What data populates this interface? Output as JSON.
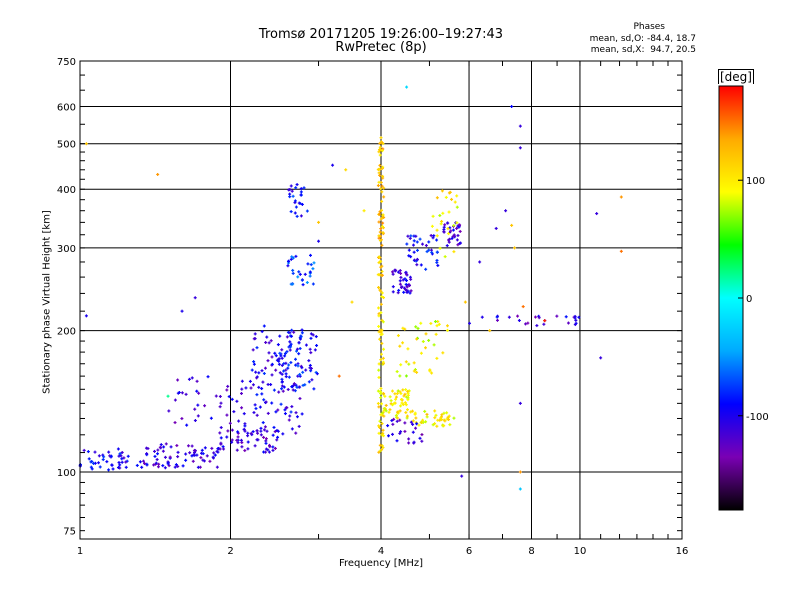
{
  "chart_data": {
    "type": "scatter",
    "title": "Tromsø 20171205 19:26:00–19:27:43",
    "subtitle": "RwPretec (8p)",
    "xlabel": "Frequency [MHz]",
    "ylabel": "Stationary phase Virtual Height [km]",
    "x_scale": "log",
    "y_scale": "log",
    "xlim": [
      1,
      16
    ],
    "ylim": [
      72,
      750
    ],
    "xticks": [
      1,
      2,
      4,
      6,
      8,
      10,
      16
    ],
    "yticks": [
      75,
      100,
      200,
      300,
      400,
      500,
      600,
      750
    ],
    "x_grid": [
      1,
      2,
      4,
      6,
      8,
      10,
      16
    ],
    "y_grid": [
      100,
      200,
      300,
      400,
      500,
      600,
      750
    ],
    "grid": true,
    "stats_header": "Phases",
    "stats_o": "mean, sd,O: -84.4, 18.7",
    "stats_x": "mean, sd,X:  94.7, 20.5",
    "colorbar": {
      "label": "[deg]",
      "range": [
        -180,
        180
      ],
      "ticks": [
        -100,
        0,
        100
      ],
      "colors": [
        "#000000",
        "#7a00b4",
        "#0000ff",
        "#00aaff",
        "#00ffff",
        "#00ff00",
        "#ffff00",
        "#ffaa00",
        "#ff0000"
      ]
    },
    "clusters": [
      {
        "fmin": 1.0,
        "fmax": 1.25,
        "hmin": 100,
        "hmax": 112,
        "phase": -95,
        "count": 45
      },
      {
        "fmin": 1.3,
        "fmax": 1.9,
        "hmin": 102,
        "hmax": 115,
        "phase": -110,
        "count": 80
      },
      {
        "fmin": 1.9,
        "fmax": 2.5,
        "hmin": 110,
        "hmax": 125,
        "phase": -110,
        "count": 60
      },
      {
        "fmin": 1.5,
        "fmax": 2.2,
        "hmin": 125,
        "hmax": 160,
        "phase": -115,
        "count": 45
      },
      {
        "fmin": 2.2,
        "fmax": 2.8,
        "hmin": 120,
        "hmax": 205,
        "phase": -100,
        "count": 120
      },
      {
        "fmin": 2.5,
        "fmax": 3.0,
        "hmin": 150,
        "hmax": 200,
        "phase": -90,
        "count": 60
      },
      {
        "fmin": 2.6,
        "fmax": 2.95,
        "hmin": 250,
        "hmax": 290,
        "phase": -75,
        "count": 30
      },
      {
        "fmin": 2.6,
        "fmax": 2.85,
        "hmin": 350,
        "hmax": 410,
        "phase": -90,
        "count": 25
      },
      {
        "fmin": 3.95,
        "fmax": 4.05,
        "hmin": 260,
        "hmax": 520,
        "phase": 120,
        "count": 70
      },
      {
        "fmin": 3.95,
        "fmax": 4.05,
        "hmin": 110,
        "hmax": 250,
        "phase": 105,
        "count": 60
      },
      {
        "fmin": 4.0,
        "fmax": 4.6,
        "hmin": 130,
        "hmax": 150,
        "phase": 100,
        "count": 60
      },
      {
        "fmin": 4.6,
        "fmax": 5.6,
        "hmin": 125,
        "hmax": 135,
        "phase": 100,
        "count": 40
      },
      {
        "fmin": 4.3,
        "fmax": 5.5,
        "hmin": 160,
        "hmax": 210,
        "phase": 90,
        "count": 40
      },
      {
        "fmin": 4.2,
        "fmax": 4.6,
        "hmin": 240,
        "hmax": 270,
        "phase": -110,
        "count": 40
      },
      {
        "fmin": 4.5,
        "fmax": 5.2,
        "hmin": 270,
        "hmax": 320,
        "phase": -95,
        "count": 40
      },
      {
        "fmin": 5.3,
        "fmax": 5.8,
        "hmin": 300,
        "hmax": 340,
        "phase": -110,
        "count": 35
      },
      {
        "fmin": 5.0,
        "fmax": 5.7,
        "hmin": 280,
        "hmax": 400,
        "phase": 100,
        "count": 25
      },
      {
        "fmin": 4.1,
        "fmax": 4.9,
        "hmin": 115,
        "hmax": 130,
        "phase": -115,
        "count": 25
      },
      {
        "fmin": 6.0,
        "fmax": 10.0,
        "hmin": 205,
        "hmax": 215,
        "phase": -110,
        "count": 25
      }
    ],
    "sparse_points": [
      [
        1.03,
        215,
        -100
      ],
      [
        1.03,
        500,
        120
      ],
      [
        1.43,
        430,
        140
      ],
      [
        1.7,
        235,
        -110
      ],
      [
        1.6,
        220,
        -100
      ],
      [
        3.4,
        440,
        110
      ],
      [
        3.2,
        450,
        -100
      ],
      [
        4.5,
        660,
        -20
      ],
      [
        7.3,
        600,
        -90
      ],
      [
        7.6,
        545,
        -110
      ],
      [
        7.6,
        490,
        -110
      ],
      [
        7.6,
        100,
        140
      ],
      [
        7.6,
        92,
        -30
      ],
      [
        7.7,
        225,
        150
      ],
      [
        11.0,
        175,
        -110
      ],
      [
        10.8,
        355,
        -110
      ],
      [
        12.1,
        385,
        140
      ],
      [
        12.1,
        295,
        150
      ],
      [
        6.8,
        330,
        -110
      ],
      [
        7.1,
        360,
        -110
      ],
      [
        7.3,
        335,
        120
      ],
      [
        5.8,
        98,
        -110
      ],
      [
        8.5,
        210,
        170
      ],
      [
        6.3,
        280,
        -110
      ],
      [
        5.9,
        230,
        120
      ],
      [
        3.3,
        160,
        150
      ],
      [
        3.5,
        230,
        110
      ],
      [
        3.7,
        360,
        100
      ],
      [
        3.0,
        310,
        -100
      ],
      [
        3.0,
        340,
        120
      ],
      [
        6.6,
        200,
        120
      ],
      [
        8.2,
        205,
        -110
      ],
      [
        7.6,
        140,
        -110
      ],
      [
        7.4,
        300,
        120
      ],
      [
        1.5,
        145,
        20
      ]
    ]
  }
}
